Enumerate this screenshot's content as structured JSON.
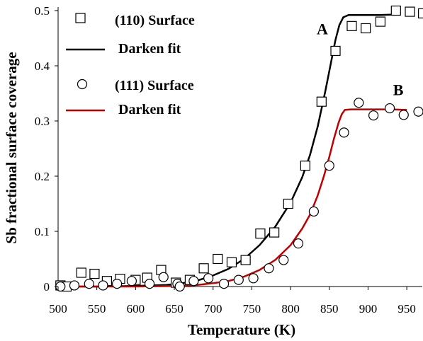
{
  "chart_data": {
    "type": "scatter",
    "title": "",
    "xlabel": "Temperature (K)",
    "ylabel": "Sb fractional surface coverage",
    "xlim": [
      500,
      970
    ],
    "ylim": [
      0,
      0.5
    ],
    "xticks": [
      500,
      550,
      600,
      650,
      700,
      750,
      800,
      850,
      900,
      950
    ],
    "yticks": [
      0,
      0.1,
      0.2,
      0.3,
      0.4,
      0.5
    ],
    "xtick_labels": [
      "500",
      "550",
      "600",
      "650",
      "700",
      "750",
      "800",
      "850",
      "900",
      "950"
    ],
    "ytick_labels": [
      "0",
      "0.1",
      "0.2",
      "0.3",
      "0.4",
      "0.5"
    ],
    "grid": false,
    "legend_position": "top-left",
    "series": [
      {
        "name": "(110) Surface",
        "kind": "scatter",
        "marker": "square",
        "color": "#000000",
        "points": [
          [
            503,
            0.002
          ],
          [
            511,
            0.0
          ],
          [
            530,
            0.025
          ],
          [
            547,
            0.023
          ],
          [
            563,
            0.01
          ],
          [
            580,
            0.014
          ],
          [
            600,
            0.012
          ],
          [
            615,
            0.016
          ],
          [
            633,
            0.03
          ],
          [
            652,
            0.007
          ],
          [
            670,
            0.012
          ],
          [
            688,
            0.033
          ],
          [
            706,
            0.05
          ],
          [
            724,
            0.044
          ],
          [
            742,
            0.048
          ],
          [
            761,
            0.096
          ],
          [
            779,
            0.098
          ],
          [
            797,
            0.15
          ],
          [
            819,
            0.219
          ],
          [
            840,
            0.335
          ],
          [
            858,
            0.427
          ],
          [
            879,
            0.472
          ],
          [
            897,
            0.468
          ],
          [
            916,
            0.48
          ],
          [
            936,
            0.5
          ],
          [
            954,
            0.498
          ],
          [
            971,
            0.495
          ]
        ]
      },
      {
        "name": "Darken fit",
        "kind": "line",
        "color": "#000000",
        "x": [
          500,
          550,
          600,
          640,
          660,
          680,
          700,
          720,
          740,
          760,
          780,
          800,
          815,
          825,
          835,
          845,
          852,
          858,
          863,
          868,
          875,
          885,
          900,
          915,
          935
        ],
        "y": [
          0.0,
          0.0,
          0.001,
          0.003,
          0.006,
          0.011,
          0.02,
          0.032,
          0.05,
          0.075,
          0.108,
          0.152,
          0.198,
          0.238,
          0.29,
          0.355,
          0.405,
          0.447,
          0.474,
          0.488,
          0.492,
          0.492,
          0.492,
          0.492,
          0.493
        ]
      },
      {
        "name": "(111) Surface",
        "kind": "scatter",
        "marker": "circle",
        "color": "#000000",
        "points": [
          [
            503,
            0.0
          ],
          [
            521,
            0.002
          ],
          [
            540,
            0.005
          ],
          [
            558,
            0.002
          ],
          [
            576,
            0.005
          ],
          [
            595,
            0.01
          ],
          [
            618,
            0.005
          ],
          [
            636,
            0.017
          ],
          [
            654,
            0.005
          ],
          [
            657,
            0.0
          ],
          [
            675,
            0.01
          ],
          [
            694,
            0.015
          ],
          [
            714,
            0.005
          ],
          [
            733,
            0.012
          ],
          [
            752,
            0.015
          ],
          [
            772,
            0.033
          ],
          [
            791,
            0.048
          ],
          [
            810,
            0.078
          ],
          [
            830,
            0.136
          ],
          [
            850,
            0.219
          ],
          [
            869,
            0.279
          ],
          [
            888,
            0.333
          ],
          [
            907,
            0.31
          ],
          [
            928,
            0.323
          ],
          [
            946,
            0.311
          ],
          [
            965,
            0.317
          ]
        ]
      },
      {
        "name": "Darken fit",
        "kind": "line",
        "color": "#c00000",
        "x": [
          500,
          550,
          600,
          650,
          680,
          700,
          720,
          740,
          760,
          780,
          800,
          815,
          825,
          835,
          843,
          850,
          856,
          862,
          866,
          870,
          878,
          890,
          910,
          930,
          950
        ],
        "y": [
          0.0,
          0.0,
          0.0,
          0.001,
          0.003,
          0.006,
          0.01,
          0.018,
          0.03,
          0.048,
          0.075,
          0.105,
          0.13,
          0.165,
          0.2,
          0.235,
          0.268,
          0.297,
          0.312,
          0.32,
          0.321,
          0.321,
          0.321,
          0.321,
          0.32
        ]
      }
    ],
    "annotations": [
      {
        "text": "A",
        "x": 841,
        "y": 0.457
      },
      {
        "text": "B",
        "x": 939,
        "y": 0.347
      }
    ]
  }
}
